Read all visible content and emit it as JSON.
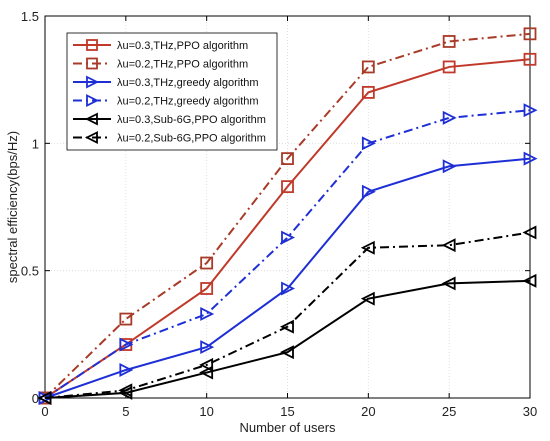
{
  "chart_data": {
    "type": "line",
    "xlabel": "Number of users",
    "ylabel": "spectral efficiency(bps/Hz)",
    "x": [
      0,
      5,
      10,
      15,
      20,
      25,
      30
    ],
    "xlim": [
      0,
      30
    ],
    "ylim": [
      0,
      1.5
    ],
    "xticks": [
      "0",
      "5",
      "10",
      "15",
      "20",
      "25",
      "30"
    ],
    "yticks": [
      "0",
      "0.5",
      "1",
      "1.5"
    ],
    "grid": true,
    "legend_position": "top-left",
    "series": [
      {
        "name": "λu=0.3,THz,PPO algorithm",
        "values": [
          0,
          0.21,
          0.43,
          0.83,
          1.2,
          1.3,
          1.33
        ],
        "color": "#c0392b",
        "dash": "solid",
        "marker": "square"
      },
      {
        "name": "λu=0.2,THz,PPO algorithm",
        "values": [
          0,
          0.31,
          0.53,
          0.94,
          1.3,
          1.4,
          1.43
        ],
        "color": "#a83a28",
        "dash": "dashdot",
        "marker": "square"
      },
      {
        "name": "λu=0.3,THz,greedy algorithm",
        "values": [
          0,
          0.11,
          0.2,
          0.43,
          0.81,
          0.91,
          0.94
        ],
        "color": "#1f2fd6",
        "dash": "solid",
        "marker": "triangle-right"
      },
      {
        "name": "λu=0.2,THz,greedy algorithm",
        "values": [
          0,
          0.21,
          0.33,
          0.63,
          1.0,
          1.1,
          1.13
        ],
        "color": "#1f2fd6",
        "dash": "dashdot",
        "marker": "triangle-right"
      },
      {
        "name": "λu=0.3,Sub-6G,PPO algorithm",
        "values": [
          0,
          0.02,
          0.1,
          0.18,
          0.39,
          0.45,
          0.46
        ],
        "color": "#000000",
        "dash": "solid",
        "marker": "triangle-left"
      },
      {
        "name": "λu=0.2,Sub-6G,PPO algorithm",
        "values": [
          0,
          0.03,
          0.13,
          0.28,
          0.59,
          0.6,
          0.65
        ],
        "color": "#000000",
        "dash": "dashdot",
        "marker": "triangle-left"
      }
    ]
  }
}
